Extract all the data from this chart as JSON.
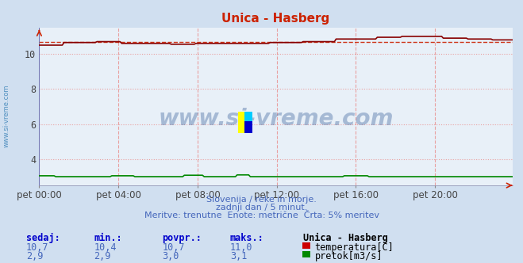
{
  "title": "Unica - Hasberg",
  "bg_color": "#d0dff0",
  "plot_bg_color": "#e8f0f8",
  "grid_color_h": "#e8a0a0",
  "grid_color_v": "#e8a0a0",
  "grid_style_h": ":",
  "grid_style_v": "--",
  "title_color": "#cc2200",
  "n_points": 288,
  "temp_min": 10.4,
  "temp_max": 11.0,
  "temp_avg": 10.7,
  "flow_min": 2.9,
  "flow_max": 3.1,
  "flow_avg": 3.0,
  "ylim": [
    2.5,
    11.5
  ],
  "yticks": [
    4,
    6,
    8,
    10
  ],
  "xtick_labels": [
    "pet 00:00",
    "pet 04:00",
    "pet 08:00",
    "pet 12:00",
    "pet 16:00",
    "pet 20:00"
  ],
  "xtick_positions": [
    0,
    48,
    96,
    144,
    192,
    240
  ],
  "avg_line_color": "#cc2200",
  "temp_line_color": "#880000",
  "flow_line_color": "#008800",
  "watermark_text": "www.si-vreme.com",
  "watermark_color": "#5577aa",
  "subtitle1": "Slovenija / reke in morje.",
  "subtitle2": "zadnji dan / 5 minut.",
  "subtitle3": "Meritve: trenutne  Enote: metrične  Črta: 5% meritev",
  "footer_color": "#4466bb",
  "legend_title": "Unica - Hasberg",
  "legend_items": [
    "temperatura[C]",
    "pretok[m3/s]"
  ],
  "legend_colors": [
    "#cc0000",
    "#008800"
  ],
  "table_headers": [
    "sedaj:",
    "min.:",
    "povpr.:",
    "maks.:"
  ],
  "table_temp": [
    "10,7",
    "10,4",
    "10,7",
    "11,0"
  ],
  "table_flow": [
    "2,9",
    "2,9",
    "3,0",
    "3,1"
  ],
  "header_color": "#0000cc",
  "value_color": "#4466bb",
  "left_label_color": "#4488bb",
  "spine_color": "#8888aa"
}
